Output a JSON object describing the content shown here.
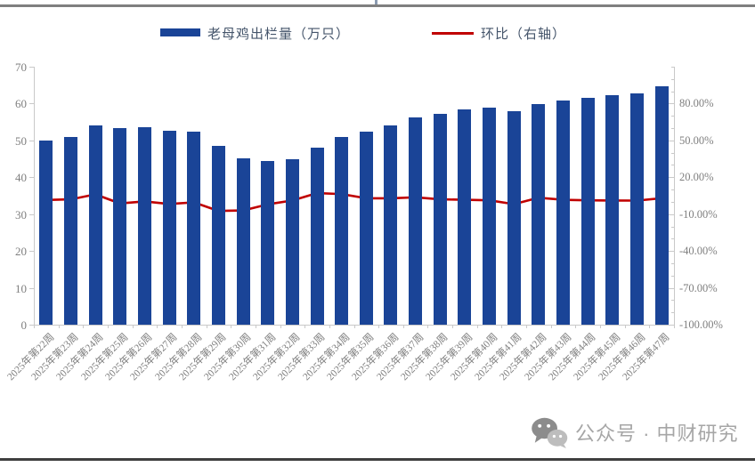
{
  "colors": {
    "bar": "#1A4497",
    "line": "#C00000",
    "axis_text": "#7F7F7F",
    "axis_line": "#C9C9C9",
    "legend_text": "#44546A",
    "top_border": "#7F7F7F",
    "bottom_border": "#3F3F3F",
    "watermark": "#A6A6A6"
  },
  "legend": {
    "bars_label": "老母鸡出栏量（万只）",
    "line_label": "环比（右轴）"
  },
  "watermark": {
    "icon": "wechat-icon",
    "text": "公众号 · 中财研究"
  },
  "chart_data": {
    "type": "bar",
    "title": "",
    "legend_position": "top",
    "grid": false,
    "categories": [
      "2025年第22周",
      "2025年第23周",
      "2025年第24周",
      "2025年第25周",
      "2025年第26周",
      "2025年第27周",
      "2025年第28周",
      "2025年第29周",
      "2025年第30周",
      "2025年第31周",
      "2025年第32周",
      "2025年第33周",
      "2025年第34周",
      "2025年第35周",
      "2025年第36周",
      "2025年第37周",
      "2025年第38周",
      "2025年第39周",
      "2025年第40周",
      "2025年第41周",
      "2025年第42周",
      "2025年第43周",
      "2025年第44周",
      "2025年第45周",
      "2025年第46周",
      "2025年第47周"
    ],
    "series": [
      {
        "name": "老母鸡出栏量（万只）",
        "type": "bar",
        "axis": "left",
        "unit": "万只",
        "values": [
          50.0,
          51.0,
          54.1,
          53.4,
          53.6,
          52.7,
          52.5,
          48.6,
          45.2,
          44.3,
          44.8,
          48.0,
          51.0,
          52.5,
          54.0,
          56.2,
          57.3,
          58.3,
          59.0,
          57.9,
          59.8,
          60.8,
          61.5,
          62.2,
          62.8,
          64.7
        ]
      },
      {
        "name": "环比（右轴）",
        "type": "line",
        "axis": "right",
        "unit": "%",
        "values": [
          1.5,
          2.0,
          6.1,
          -1.3,
          0.4,
          -1.7,
          -0.4,
          -7.4,
          -7.0,
          -2.0,
          1.1,
          7.1,
          6.3,
          2.9,
          2.9,
          3.7,
          2.0,
          1.7,
          1.2,
          -1.9,
          3.3,
          1.7,
          1.2,
          1.1,
          1.0,
          3.0
        ]
      }
    ],
    "left_axis": {
      "min": 0,
      "max": 70,
      "tick_step": 10,
      "tick_labels": [
        "0",
        "10",
        "20",
        "30",
        "40",
        "50",
        "60",
        "70"
      ],
      "tick_values": [
        0,
        10,
        20,
        30,
        40,
        50,
        60,
        70
      ]
    },
    "right_axis": {
      "min": -100,
      "max": 110,
      "tick_step": 30,
      "minor_tick_step": 10,
      "tick_labels": [
        "80.00%",
        "50.00%",
        "20.00%",
        "-10.00%",
        "-40.00%",
        "-70.00%",
        "-100.00%"
      ],
      "tick_values": [
        80,
        50,
        20,
        -10,
        -40,
        -70,
        -100
      ]
    }
  }
}
